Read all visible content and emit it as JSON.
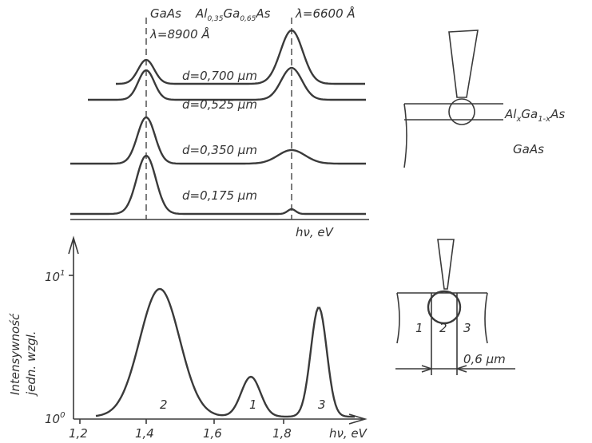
{
  "top_panel": {
    "gaas_label": "GaAs",
    "algaas_label": {
      "p1": "Al",
      "s1": "0,35",
      "p2": "Ga",
      "s2": "0,65",
      "p3": "As"
    },
    "lambda_algaas": "λ=6600 Å",
    "lambda_gaas": "λ=8900 Å",
    "curves": [
      "d=0,700 µm",
      "d=0,525 µm",
      "d=0,350 µm",
      "d=0,175 µm"
    ],
    "x_label": "hν, eV"
  },
  "top_sketch": {
    "layer_label": {
      "p1": "Al",
      "s1": "x",
      "p2": "Ga",
      "s2": "1-x",
      "p3": "As"
    },
    "substrate_label": "GaAs"
  },
  "bottom_panel": {
    "y_label": [
      "Intensywność",
      "jedn. wzgl."
    ],
    "y_ticks": [
      {
        "base": "10",
        "exp": "1"
      },
      {
        "base": "10",
        "exp": "0"
      }
    ],
    "x_ticks": [
      "1,2",
      "1,4",
      "1,6",
      "1,8"
    ],
    "x_label": "hν, eV",
    "peak_labels": [
      "2",
      "1",
      "3"
    ]
  },
  "bottom_sketch": {
    "regions": [
      "1",
      "2",
      "3"
    ],
    "width_label": "0,6 µm"
  }
}
